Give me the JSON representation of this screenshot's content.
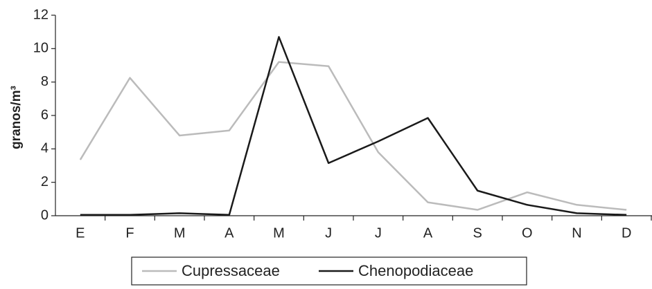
{
  "chart_data": {
    "type": "line",
    "y_label": "granos/m³",
    "categories": [
      "E",
      "F",
      "M",
      "A",
      "M",
      "J",
      "J",
      "A",
      "S",
      "O",
      "N",
      "D"
    ],
    "series": [
      {
        "name": "Cupressaceae",
        "color": "#bbbbbb",
        "values": [
          3.35,
          8.25,
          4.8,
          5.1,
          9.2,
          8.95,
          3.8,
          0.8,
          0.35,
          1.4,
          0.65,
          0.35
        ]
      },
      {
        "name": "Chenopodiaceae",
        "color": "#1a1a1a",
        "values": [
          0.05,
          0.05,
          0.15,
          0.05,
          10.7,
          3.15,
          4.45,
          5.85,
          1.5,
          0.65,
          0.15,
          0.05
        ]
      }
    ],
    "ylim": [
      0,
      12
    ],
    "yticks": [
      0,
      2,
      4,
      6,
      8,
      10,
      12
    ],
    "grid": false,
    "legend": "bottom"
  }
}
